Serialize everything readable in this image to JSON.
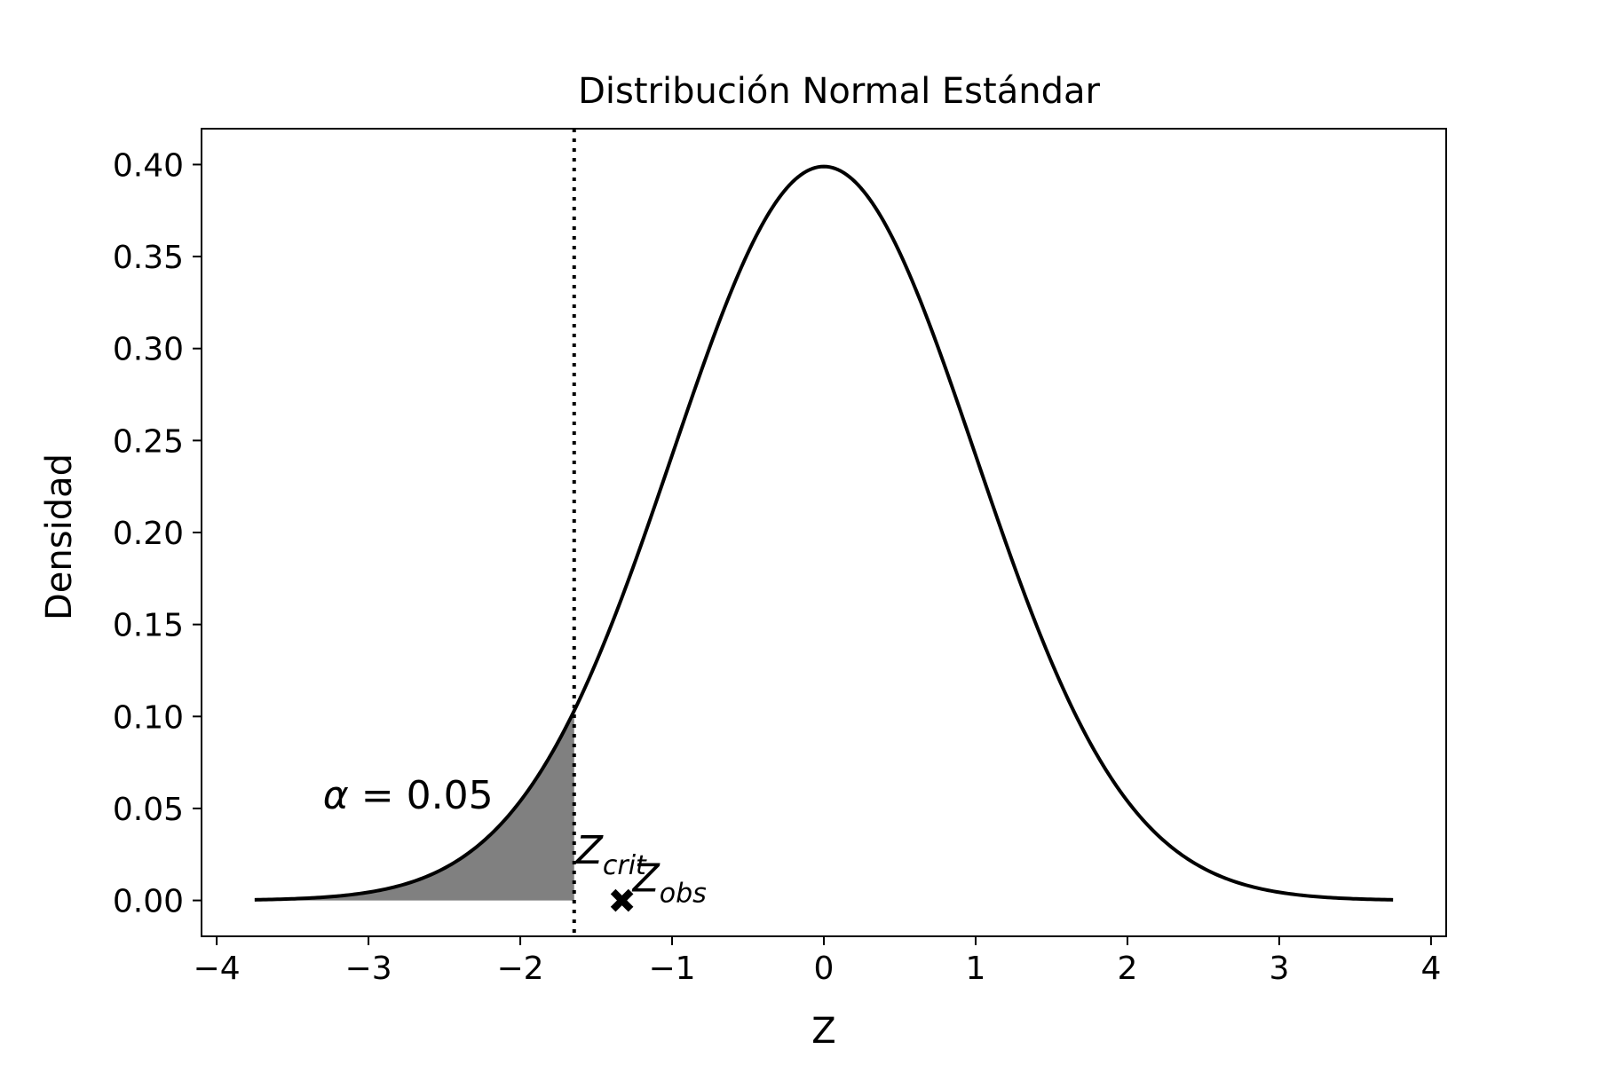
{
  "chart_data": {
    "type": "line",
    "title": "Distribución Normal Estándar",
    "xlabel": "Z",
    "ylabel": "Densidad",
    "xlim": [
      -4.1,
      4.1
    ],
    "ylim": [
      -0.0195,
      0.4195
    ],
    "x_ticks": [
      -4,
      -3,
      -2,
      -1,
      0,
      1,
      2,
      3,
      4
    ],
    "x_tick_labels": [
      "−4",
      "−3",
      "−2",
      "−1",
      "0",
      "1",
      "2",
      "3",
      "4"
    ],
    "y_ticks": [
      0.0,
      0.05,
      0.1,
      0.15,
      0.2,
      0.25,
      0.3,
      0.35,
      0.4
    ],
    "y_tick_labels": [
      "0.00",
      "0.05",
      "0.10",
      "0.15",
      "0.20",
      "0.25",
      "0.30",
      "0.35",
      "0.40"
    ],
    "grid": false,
    "series": [
      {
        "curve": "standard normal density",
        "x_range": [
          -3.75,
          3.75
        ],
        "color": "#000000"
      }
    ],
    "shaded_region": {
      "x_from": -3.75,
      "x_to": -1.645,
      "color": "#808080"
    },
    "critical_line": {
      "x": -1.645,
      "style": "dotted",
      "color": "#000000"
    },
    "observed_point": {
      "x": -1.33,
      "y": 0.0,
      "marker": "X",
      "color": "#000000"
    },
    "annotations": {
      "alpha": {
        "symbol": "α",
        "text": " = 0.05",
        "x": -3.3,
        "y": 0.05
      },
      "z_crit": {
        "main": "Z",
        "sub": "crit",
        "x": -1.645,
        "y": 0.02
      },
      "z_obs": {
        "main": "Z",
        "sub": "obs",
        "x": -1.33,
        "y": 0.0
      }
    }
  }
}
